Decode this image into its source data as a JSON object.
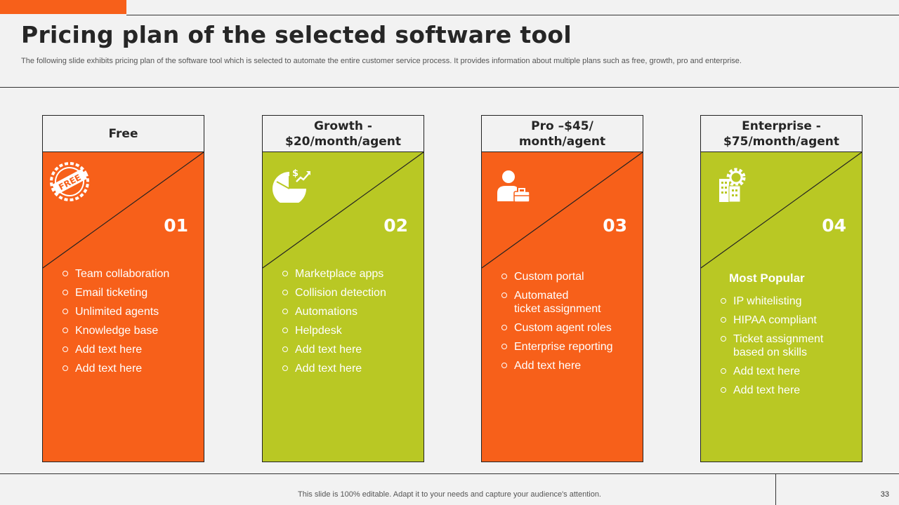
{
  "slide": {
    "title": "Pricing plan of the selected software tool",
    "subtitle": "The following slide exhibits pricing plan of the software tool which is selected to automate the entire customer service process. It provides information about multiple plans such as free, growth, pro and enterprise.",
    "footer": "This slide is 100% editable. Adapt it to your needs and capture your audience's attention.",
    "page_number": "33"
  },
  "colors": {
    "orange": "#f7601a",
    "green": "#b9c824",
    "dark": "#262626"
  },
  "plans": [
    {
      "name": "Free",
      "number": "01",
      "icon": "free-badge-icon",
      "items": [
        "Team collaboration",
        "Email ticketing",
        "Unlimited agents",
        "Knowledge base",
        "Add text here",
        "Add text here"
      ]
    },
    {
      "name": "Growth -\n$20/month/agent",
      "number": "02",
      "icon": "pie-chart-growth-icon",
      "items": [
        "Marketplace apps",
        "Collision detection",
        "Automations",
        "Helpdesk",
        "Add text here",
        "Add text here"
      ]
    },
    {
      "name": "Pro –$45/\nmonth/agent",
      "number": "03",
      "icon": "businessman-briefcase-icon",
      "items": [
        "Custom portal",
        "Automated\nticket assignment",
        "Custom agent roles",
        "Enterprise reporting",
        "Add text here"
      ]
    },
    {
      "name": "Enterprise -\n$75/month/agent",
      "number": "04",
      "icon": "building-gear-icon",
      "highlight": "Most Popular",
      "items": [
        "IP whitelisting",
        "HIPAA compliant",
        "Ticket assignment\nbased on skills",
        "Add text here",
        "Add text here"
      ]
    }
  ]
}
